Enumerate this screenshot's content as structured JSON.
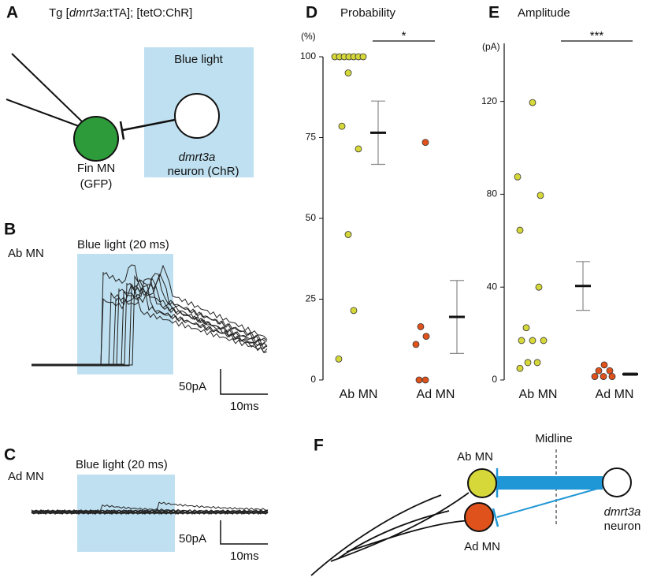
{
  "panel_a": {
    "label": "A",
    "title_parts": [
      "Tg [",
      "dmrt3a",
      ":tTA]; [tetO:ChR]"
    ],
    "box_label": "Blue light",
    "neuron_label": [
      "dmrt3a",
      "neuron (ChR)"
    ],
    "mn_label": [
      "Fin MN",
      "(GFP)"
    ]
  },
  "panel_b": {
    "label": "B",
    "cell": "Ab MN",
    "stimulus": "Blue light (20 ms)",
    "scale_y": "50pA",
    "scale_x": "10ms"
  },
  "panel_c": {
    "label": "C",
    "cell": "Ad MN",
    "stimulus": "Blue light (20 ms)",
    "scale_y": "50pA",
    "scale_x": "10ms"
  },
  "chart_data": [
    {
      "type": "scatter",
      "panel_label": "D",
      "title": "Probability",
      "y_unit": "(%)",
      "categories": [
        "Ab MN",
        "Ad MN"
      ],
      "groups": [
        {
          "color": "#d6d83a",
          "values": [
            100,
            100,
            100,
            100,
            100,
            100,
            100,
            95,
            78.5,
            71.5,
            45,
            21.5,
            6.5
          ],
          "mean": 76.5,
          "error": 9.8
        },
        {
          "color": "#e0521c",
          "values": [
            73.5,
            16.5,
            13.5,
            11,
            0,
            0
          ],
          "mean": 19.5,
          "error": 11.3
        }
      ],
      "ylim": [
        0,
        100
      ],
      "yticks": [
        0,
        25,
        50,
        75,
        100
      ],
      "significance": "*"
    },
    {
      "type": "scatter",
      "panel_label": "E",
      "title": "Amplitude",
      "y_unit": "(pA)",
      "categories": [
        "Ab MN",
        "Ad MN"
      ],
      "groups": [
        {
          "color": "#d6d83a",
          "values": [
            119.5,
            87.5,
            79.5,
            64.5,
            40,
            22.5,
            17,
            17,
            17,
            7.5,
            7.5,
            5
          ],
          "mean": 40.5,
          "error": 10.5
        },
        {
          "color": "#e0521c",
          "values": [
            6.5,
            4,
            4,
            1.5,
            1.5,
            1.5
          ],
          "mean": 2.5,
          "error": 0.6
        }
      ],
      "ylim": [
        0,
        145
      ],
      "yticks": [
        0,
        40,
        80,
        120
      ],
      "significance": "***"
    }
  ],
  "panel_f": {
    "label": "F",
    "midline": "Midline",
    "ab_label": "Ab MN",
    "ad_label": "Ad MN",
    "neuron_label": [
      "dmrt3a",
      "neuron"
    ]
  }
}
